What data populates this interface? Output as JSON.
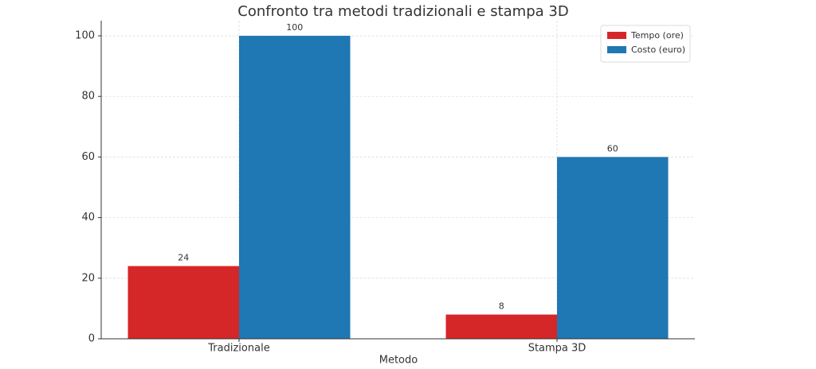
{
  "chart_data": {
    "type": "bar",
    "title": "Confronto tra metodi tradizionali e stampa 3D",
    "x_label": "Metodo",
    "categories": [
      "Tradizionale",
      "Stampa 3D"
    ],
    "series": [
      {
        "name": "Tempo (ore)",
        "color": "#d62728",
        "values": [
          24,
          8
        ]
      },
      {
        "name": "Costo (euro)",
        "color": "#1f77b4",
        "values": [
          100,
          60
        ]
      }
    ],
    "ylim": [
      0,
      105
    ],
    "yticks": [
      0,
      20,
      40,
      60,
      80,
      100
    ],
    "grid": true,
    "legend": "upper right"
  }
}
